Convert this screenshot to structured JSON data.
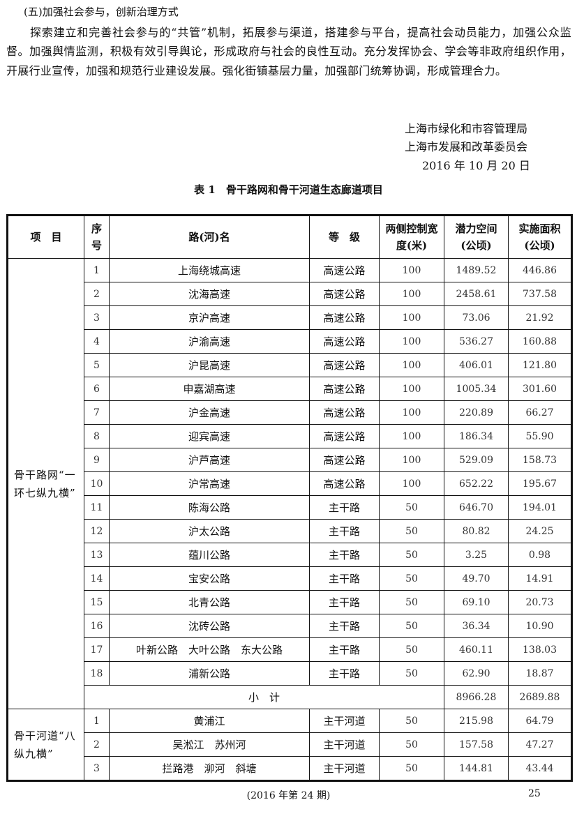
{
  "section_title": "(五)加强社会参与，创新治理方式",
  "paragraph": "探索建立和完善社会参与的“共管”机制，拓展参与渠道，搭建参与平台，提高社会动员能力，加强公众监督。加强舆情监测，积极有效引导舆论，形成政府与社会的良性互动。充分发挥协会、学会等非政府组织作用，开展行业宣传，加强和规范行业建设发展。强化街镇基层力量，加强部门统筹协调，形成管理合力。",
  "signature": {
    "org1": "上海市绿化和市容管理局",
    "org2": "上海市发展和改革委员会",
    "date": "2016 年 10 月 20 日"
  },
  "table": {
    "title": "表 1　骨干路网和骨干河道生态廊道项目",
    "headers": [
      "项　目",
      "序号",
      "路(河)名",
      "等　级",
      "两侧控制宽度(米)",
      "潜力空间(公顷)",
      "实施面积(公顷)"
    ],
    "groups": [
      {
        "label": "骨干路网“一环七纵九横”",
        "rows": [
          [
            "1",
            "上海绕城高速",
            "高速公路",
            "100",
            "1489.52",
            "446.86"
          ],
          [
            "2",
            "沈海高速",
            "高速公路",
            "100",
            "2458.61",
            "737.58"
          ],
          [
            "3",
            "京沪高速",
            "高速公路",
            "100",
            "73.06",
            "21.92"
          ],
          [
            "4",
            "沪渝高速",
            "高速公路",
            "100",
            "536.27",
            "160.88"
          ],
          [
            "5",
            "沪昆高速",
            "高速公路",
            "100",
            "406.01",
            "121.80"
          ],
          [
            "6",
            "申嘉湖高速",
            "高速公路",
            "100",
            "1005.34",
            "301.60"
          ],
          [
            "7",
            "沪金高速",
            "高速公路",
            "100",
            "220.89",
            "66.27"
          ],
          [
            "8",
            "迎宾高速",
            "高速公路",
            "100",
            "186.34",
            "55.90"
          ],
          [
            "9",
            "沪芦高速",
            "高速公路",
            "100",
            "529.09",
            "158.73"
          ],
          [
            "10",
            "沪常高速",
            "高速公路",
            "100",
            "652.22",
            "195.67"
          ],
          [
            "11",
            "陈海公路",
            "主干路",
            "50",
            "646.70",
            "194.01"
          ],
          [
            "12",
            "沪太公路",
            "主干路",
            "50",
            "80.82",
            "24.25"
          ],
          [
            "13",
            "蕴川公路",
            "主干路",
            "50",
            "3.25",
            "0.98"
          ],
          [
            "14",
            "宝安公路",
            "主干路",
            "50",
            "49.70",
            "14.91"
          ],
          [
            "15",
            "北青公路",
            "主干路",
            "50",
            "69.10",
            "20.73"
          ],
          [
            "16",
            "沈砖公路",
            "主干路",
            "50",
            "36.34",
            "10.90"
          ],
          [
            "17",
            "叶新公路　大叶公路　东大公路",
            "主干路",
            "50",
            "460.11",
            "138.03"
          ],
          [
            "18",
            "浦新公路",
            "主干路",
            "50",
            "62.90",
            "18.87"
          ]
        ],
        "subtotal": {
          "label": "小　计",
          "potential": "8966.28",
          "implemented": "2689.88"
        }
      },
      {
        "label": "骨干河道“八纵九横”",
        "rows": [
          [
            "1",
            "黄浦江",
            "主干河道",
            "50",
            "215.98",
            "64.79"
          ],
          [
            "2",
            "吴淞江　苏州河",
            "主干河道",
            "50",
            "157.58",
            "47.27"
          ],
          [
            "3",
            "拦路港　泖河　斜塘",
            "主干河道",
            "50",
            "144.81",
            "43.44"
          ]
        ]
      }
    ]
  },
  "footer": {
    "issue": "(2016 年第 24 期)",
    "page": "25"
  }
}
